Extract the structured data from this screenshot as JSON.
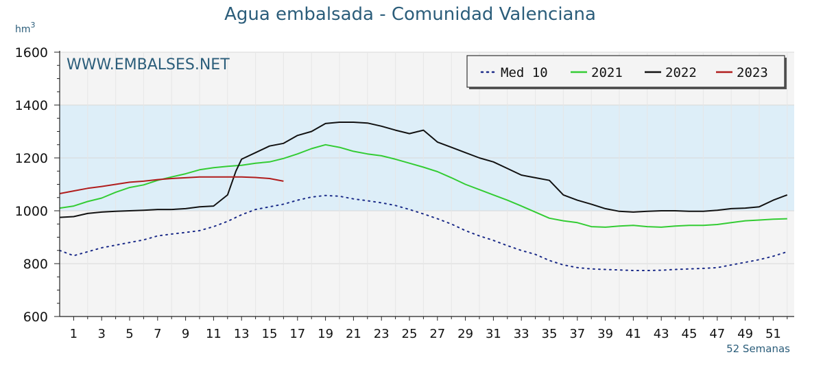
{
  "chart_data": {
    "type": "line",
    "title": "Agua embalsada - Comunidad Valenciana",
    "unit_base": "hm",
    "unit_exp": "3",
    "watermark": "WWW.EMBALSES.NET",
    "xlabel": "52 Semanas",
    "ylim": [
      600,
      1600
    ],
    "yticks": [
      600,
      800,
      1000,
      1200,
      1400,
      1600
    ],
    "xlim": [
      0,
      52.5
    ],
    "xticks": [
      1,
      3,
      5,
      7,
      9,
      11,
      13,
      15,
      17,
      19,
      21,
      23,
      25,
      27,
      29,
      31,
      33,
      35,
      37,
      39,
      41,
      43,
      45,
      47,
      49,
      51
    ],
    "legend_position": "top-right",
    "colors": {
      "band": "#ddeef8",
      "plot_bg": "#f4f4f4",
      "grid": "#d8d8d8"
    },
    "series": [
      {
        "name": "Med 10",
        "color": "#1a2a88",
        "dash": "dotted",
        "x": [
          0,
          1,
          2,
          3,
          4,
          5,
          6,
          7,
          8,
          9,
          10,
          11,
          12,
          13,
          14,
          15,
          16,
          17,
          18,
          19,
          20,
          21,
          22,
          23,
          24,
          25,
          26,
          27,
          28,
          29,
          30,
          31,
          32,
          33,
          34,
          35,
          36,
          37,
          38,
          39,
          40,
          41,
          42,
          43,
          44,
          45,
          46,
          47,
          48,
          49,
          50,
          51,
          52
        ],
        "values": [
          850,
          830,
          845,
          860,
          870,
          880,
          890,
          905,
          912,
          918,
          925,
          940,
          960,
          985,
          1005,
          1015,
          1025,
          1040,
          1052,
          1058,
          1055,
          1045,
          1038,
          1030,
          1020,
          1005,
          988,
          970,
          950,
          925,
          905,
          888,
          868,
          850,
          835,
          812,
          795,
          785,
          780,
          778,
          776,
          774,
          774,
          775,
          778,
          780,
          782,
          785,
          795,
          805,
          815,
          828,
          845
        ]
      },
      {
        "name": "2021",
        "color": "#33cc33",
        "dash": "solid",
        "x": [
          0,
          1,
          2,
          3,
          4,
          5,
          6,
          7,
          8,
          9,
          10,
          11,
          12,
          13,
          14,
          15,
          16,
          17,
          18,
          19,
          20,
          21,
          22,
          23,
          24,
          25,
          26,
          27,
          28,
          29,
          30,
          31,
          32,
          33,
          34,
          35,
          36,
          37,
          38,
          39,
          40,
          41,
          42,
          43,
          44,
          45,
          46,
          47,
          48,
          49,
          50,
          51,
          52
        ],
        "values": [
          1010,
          1018,
          1035,
          1048,
          1070,
          1088,
          1098,
          1115,
          1128,
          1140,
          1155,
          1163,
          1168,
          1172,
          1180,
          1185,
          1198,
          1215,
          1235,
          1250,
          1240,
          1225,
          1215,
          1208,
          1195,
          1180,
          1165,
          1148,
          1125,
          1100,
          1080,
          1060,
          1040,
          1018,
          995,
          972,
          962,
          955,
          940,
          938,
          942,
          945,
          940,
          938,
          942,
          945,
          945,
          948,
          955,
          962,
          965,
          968,
          970
        ]
      },
      {
        "name": "2022",
        "color": "#111111",
        "dash": "solid",
        "x": [
          0,
          1,
          2,
          3,
          4,
          5,
          6,
          7,
          8,
          9,
          10,
          11,
          12,
          12.6,
          13,
          14,
          15,
          16,
          17,
          18,
          19,
          20,
          21,
          22,
          23,
          24,
          25,
          26,
          27,
          28,
          29,
          30,
          31,
          32,
          33,
          34,
          35,
          36,
          37,
          38,
          39,
          40,
          41,
          42,
          43,
          44,
          45,
          46,
          47,
          48,
          49,
          50,
          51,
          52
        ],
        "values": [
          975,
          978,
          990,
          995,
          998,
          1000,
          1002,
          1005,
          1005,
          1008,
          1015,
          1018,
          1060,
          1150,
          1195,
          1220,
          1245,
          1255,
          1285,
          1300,
          1330,
          1335,
          1335,
          1332,
          1320,
          1305,
          1292,
          1305,
          1260,
          1240,
          1220,
          1200,
          1185,
          1160,
          1135,
          1125,
          1115,
          1060,
          1040,
          1025,
          1008,
          998,
          995,
          998,
          1000,
          1000,
          998,
          998,
          1002,
          1008,
          1010,
          1015,
          1040,
          1060
        ]
      },
      {
        "name": "2023",
        "color": "#b01c1c",
        "dash": "solid",
        "x": [
          0,
          1,
          2,
          3,
          4,
          5,
          6,
          7,
          8,
          9,
          10,
          11,
          12,
          13,
          14,
          15,
          16
        ],
        "values": [
          1065,
          1075,
          1085,
          1092,
          1100,
          1108,
          1112,
          1118,
          1122,
          1125,
          1128,
          1128,
          1128,
          1128,
          1126,
          1122,
          1112
        ]
      }
    ]
  }
}
